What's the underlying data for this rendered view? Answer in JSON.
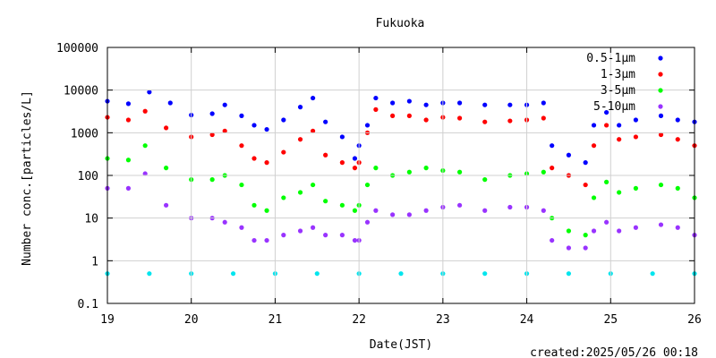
{
  "chart_data": {
    "type": "scatter",
    "title": "Fukuoka",
    "xlabel": "Date(JST)",
    "ylabel": "Number conc.[particles/L]",
    "yscale": "log",
    "xlim": [
      19,
      26
    ],
    "ylim": [
      0.1,
      100000
    ],
    "x_ticks": [
      "19",
      "20",
      "21",
      "22",
      "23",
      "24",
      "25",
      "26"
    ],
    "y_ticks": [
      "0.1",
      "1",
      "10",
      "100",
      "1000",
      "10000",
      "100000"
    ],
    "legend_position": "top-right",
    "footer": "created:2025/05/26 00:18",
    "series": [
      {
        "name": "0.5-1μm",
        "color": "#0000ff",
        "x": [
          19.0,
          19.25,
          19.5,
          19.75,
          20.0,
          20.25,
          20.4,
          20.6,
          20.75,
          20.9,
          21.1,
          21.3,
          21.45,
          21.6,
          21.8,
          21.95,
          22.0,
          22.1,
          22.2,
          22.4,
          22.6,
          22.8,
          23.0,
          23.2,
          23.5,
          23.8,
          24.0,
          24.2,
          24.3,
          24.5,
          24.7,
          24.8,
          24.95,
          25.1,
          25.3,
          25.6,
          25.8,
          26.0
        ],
        "values": [
          5500,
          4800,
          9000,
          5000,
          2600,
          2800,
          4500,
          2500,
          1500,
          1200,
          2000,
          4000,
          6500,
          1800,
          800,
          250,
          500,
          1500,
          6500,
          5000,
          5500,
          4500,
          5000,
          5000,
          4500,
          4500,
          4500,
          5000,
          500,
          300,
          200,
          1500,
          3000,
          1500,
          2000,
          2500,
          2000,
          1800
        ]
      },
      {
        "name": "1-3μm",
        "color": "#ff0000",
        "x": [
          19.0,
          19.25,
          19.45,
          19.7,
          20.0,
          20.25,
          20.4,
          20.6,
          20.75,
          20.9,
          21.1,
          21.3,
          21.45,
          21.6,
          21.8,
          21.95,
          22.0,
          22.1,
          22.2,
          22.4,
          22.6,
          22.8,
          23.0,
          23.2,
          23.5,
          23.8,
          24.0,
          24.2,
          24.3,
          24.5,
          24.7,
          24.8,
          24.95,
          25.1,
          25.3,
          25.6,
          25.8,
          26.0
        ],
        "values": [
          2300,
          2000,
          3200,
          1300,
          800,
          900,
          1100,
          500,
          250,
          200,
          350,
          700,
          1100,
          300,
          200,
          150,
          200,
          1000,
          3500,
          2500,
          2500,
          2000,
          2300,
          2200,
          1800,
          1900,
          2000,
          2200,
          150,
          100,
          60,
          500,
          1500,
          700,
          800,
          900,
          700,
          500
        ]
      },
      {
        "name": "3-5μm",
        "color": "#00ff00",
        "x": [
          19.0,
          19.25,
          19.45,
          19.7,
          20.0,
          20.25,
          20.4,
          20.6,
          20.75,
          20.9,
          21.1,
          21.3,
          21.45,
          21.6,
          21.8,
          21.95,
          22.0,
          22.1,
          22.2,
          22.4,
          22.6,
          22.8,
          23.0,
          23.2,
          23.5,
          23.8,
          24.0,
          24.2,
          24.3,
          24.5,
          24.7,
          24.8,
          24.95,
          25.1,
          25.3,
          25.6,
          25.8,
          26.0
        ],
        "values": [
          250,
          230,
          500,
          150,
          80,
          80,
          100,
          60,
          20,
          15,
          30,
          40,
          60,
          25,
          20,
          15,
          20,
          60,
          150,
          100,
          120,
          150,
          130,
          120,
          80,
          100,
          110,
          120,
          10,
          5,
          4,
          30,
          70,
          40,
          50,
          60,
          50,
          30
        ]
      },
      {
        "name": "5-10μm",
        "color": "#9933ff",
        "x": [
          19.0,
          19.25,
          19.45,
          19.7,
          20.0,
          20.25,
          20.4,
          20.6,
          20.75,
          20.9,
          21.1,
          21.3,
          21.45,
          21.6,
          21.8,
          21.95,
          22.0,
          22.1,
          22.2,
          22.4,
          22.6,
          22.8,
          23.0,
          23.2,
          23.5,
          23.8,
          24.0,
          24.2,
          24.3,
          24.5,
          24.7,
          24.8,
          24.95,
          25.1,
          25.3,
          25.6,
          25.8,
          26.0
        ],
        "values": [
          50,
          50,
          110,
          20,
          10,
          10,
          8,
          6,
          3,
          3,
          4,
          5,
          6,
          4,
          4,
          3,
          3,
          8,
          15,
          12,
          12,
          15,
          18,
          20,
          15,
          18,
          18,
          15,
          3,
          2,
          2,
          5,
          8,
          5,
          6,
          7,
          6,
          4
        ]
      },
      {
        "name": "",
        "color": "#00e5ee",
        "x": [
          19.0,
          19.5,
          20.0,
          20.5,
          21.0,
          21.5,
          22.0,
          22.5,
          23.0,
          23.5,
          24.0,
          24.5,
          25.0,
          25.5,
          26.0
        ],
        "values": [
          0.5,
          0.5,
          0.5,
          0.5,
          0.5,
          0.5,
          0.5,
          0.5,
          0.5,
          0.5,
          0.5,
          0.5,
          0.5,
          0.5,
          0.5
        ]
      }
    ]
  }
}
